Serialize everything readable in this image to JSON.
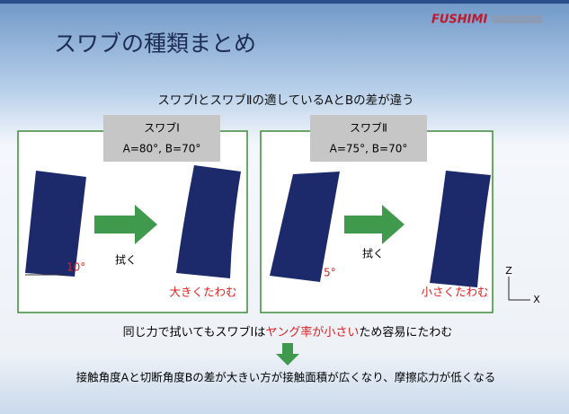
{
  "header": {
    "title": "スワブの種類まとめ",
    "logo": "FUSHIMI"
  },
  "subtitle": "スワブⅠとスワブⅡの適しているAとBの差が違う",
  "panels": [
    {
      "label": "スワブⅠ",
      "angles": "A=80°, B=70°",
      "angle_marker": "10°",
      "action": "拭く",
      "result": "大きくたわむ"
    },
    {
      "label": "スワブⅡ",
      "angles": "A=75°, B=70°",
      "angle_marker": "5°",
      "action": "拭く",
      "result": "小さくたわむ"
    }
  ],
  "axes": {
    "z": "Z",
    "x": "X"
  },
  "conclusion": {
    "parts": [
      "同じ力で拭いてもスワブⅠは",
      "ヤング率が小さい",
      "ため容易にたわむ"
    ]
  },
  "summary": "接触角度Aと切断角度Bの差が大きい方が接触面積が広くなり、摩擦応力が低くなる"
}
